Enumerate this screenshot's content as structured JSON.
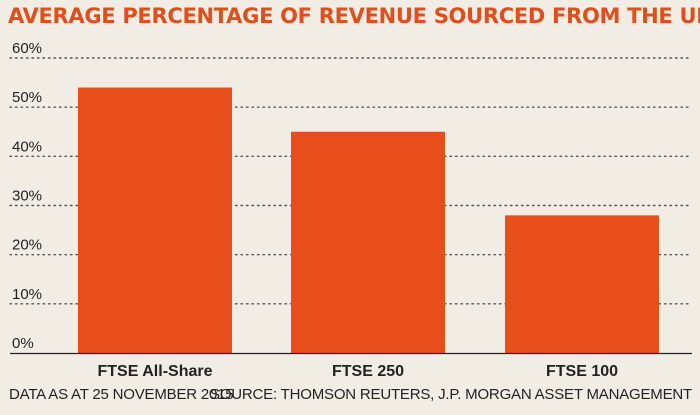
{
  "title": "AVERAGE PERCENTAGE OF REVENUE SOURCED FROM THE UK",
  "footer_left": "DATA AS AT 25 NOVEMBER 2015",
  "footer_right": "SOURCE: THOMSON REUTERS, J.P. MORGAN ASSET MANAGEMENT",
  "colors": {
    "bar": "#e84e1b",
    "title": "#e04e1b",
    "background": "#f2ede4",
    "grid": "#555555"
  },
  "chart_data": {
    "type": "bar",
    "title": "AVERAGE PERCENTAGE OF REVENUE SOURCED FROM THE UK",
    "categories": [
      "FTSE All-Share",
      "FTSE 250",
      "FTSE 100"
    ],
    "values": [
      54,
      45,
      28
    ],
    "unit": "%",
    "ylim": [
      0,
      60
    ],
    "yticks": [
      0,
      10,
      20,
      30,
      40,
      50,
      60
    ],
    "ytick_labels": [
      "0%",
      "10%",
      "20%",
      "30%",
      "40%",
      "50%",
      "60%"
    ],
    "grid": "dotted horizontal",
    "legend": "none"
  }
}
